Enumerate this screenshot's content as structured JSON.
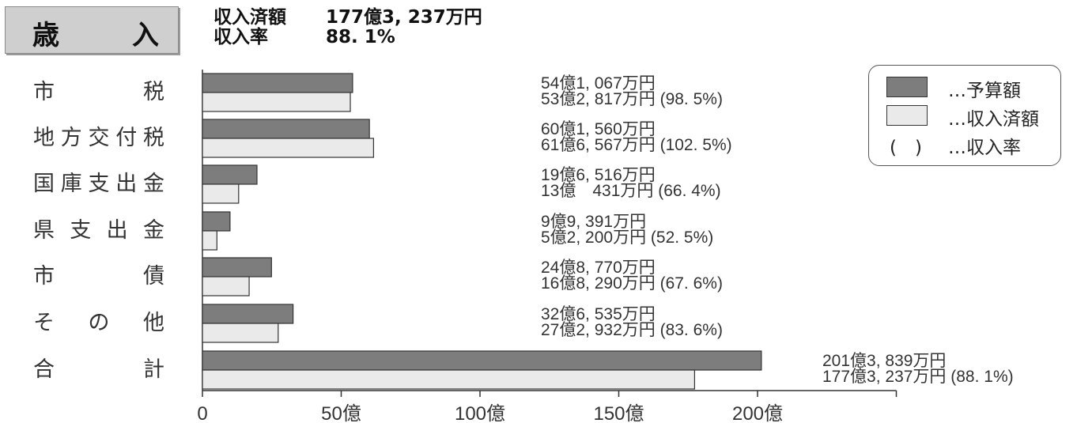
{
  "title": {
    "char1": "歳",
    "char2": "入"
  },
  "summary": {
    "line1_label": "収入済額",
    "line1_value": "177億3, 237万円",
    "line2_label": "収入率",
    "line2_value": "88. 1%"
  },
  "legend": {
    "budget_label": "…予算額",
    "received_label": "…収入済額",
    "rate_symbol": "(　)",
    "rate_label": "…収入率"
  },
  "colors": {
    "budget": "#7d7d7d",
    "received": "#eaeaea",
    "outline": "#333333"
  },
  "chart_data": {
    "type": "bar",
    "orientation": "horizontal",
    "categories": [
      "市税",
      "地方交付税",
      "国庫支出金",
      "県支出金",
      "市債",
      "その他",
      "合計"
    ],
    "series": [
      {
        "name": "予算額",
        "values": [
          54.1067,
          60.156,
          19.6516,
          9.9391,
          24.877,
          32.6535,
          201.3839
        ]
      },
      {
        "name": "収入済額",
        "values": [
          53.2817,
          61.6567,
          13.0431,
          5.22,
          16.829,
          27.2932,
          177.3237
        ]
      }
    ],
    "budget_labels": [
      "54億1, 067万円",
      "60億1, 560万円",
      "19億6, 516万円",
      "9億9, 391万円",
      "24億8, 770万円",
      "32億6, 535万円",
      "201億3, 839万円"
    ],
    "received_labels": [
      "53億2, 817万円 (98. 5%)",
      "61億6, 567万円 (102. 5%)",
      "13億　431万円 (66. 4%)",
      "5億2, 200万円 (52. 5%)",
      "16億8, 290万円 (67. 6%)",
      "27億2, 932万円 (83. 6%)",
      "177億3, 237万円 (88. 1%)"
    ],
    "xlim": [
      0,
      250
    ],
    "xticks": [
      0,
      50,
      100,
      150,
      200
    ],
    "xtick_labels": [
      "0",
      "50億",
      "100億",
      "150億",
      "200億"
    ],
    "unit": "億円",
    "legend_position": "top-right",
    "grid": false
  }
}
